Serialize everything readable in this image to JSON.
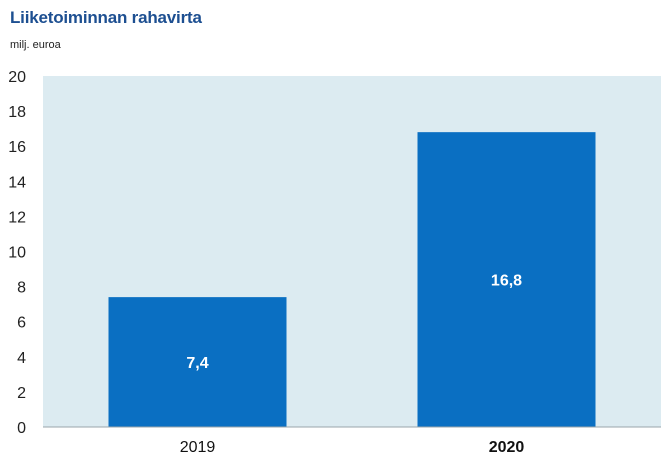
{
  "chart_data": {
    "type": "bar",
    "title": "Liiketoiminnan rahavirta",
    "unit_label": "milj. euroa",
    "categories": [
      "2019",
      "2020"
    ],
    "category_bold": [
      false,
      true
    ],
    "values": [
      7.4,
      16.8
    ],
    "data_labels": [
      "7,4",
      "16,8"
    ],
    "ylim": [
      0,
      20
    ],
    "yticks": [
      0,
      2,
      4,
      6,
      8,
      10,
      12,
      14,
      16,
      18,
      20
    ],
    "grid": false,
    "legend": "none"
  },
  "colors": {
    "title": "#1d4f91",
    "plot_background": "#dcebf1",
    "bar": "#0a6fc2",
    "data_label": "#ffffff"
  }
}
